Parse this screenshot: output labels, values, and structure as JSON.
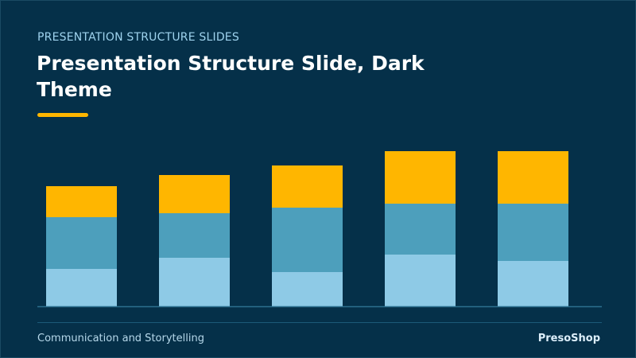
{
  "slide": {
    "kicker": "PRESENTATION STRUCTURE SLIDES",
    "title": "Presentation Structure Slide, Dark Theme",
    "footer_left": "Communication and Storytelling",
    "footer_right": "PresoShop"
  },
  "colors": {
    "background": "#053049",
    "accent": "#ffb600",
    "segment_bottom": "#8ecae6",
    "segment_middle": "#4d9fbc",
    "segment_top": "#ffb600",
    "baseline": "#2c6f8f"
  },
  "chart_data": {
    "type": "bar",
    "stacked": true,
    "categories": [
      "",
      "",
      "",
      "",
      ""
    ],
    "series": [
      {
        "values": [
          47,
          61,
          43,
          65,
          57
        ],
        "color": "#8ecae6"
      },
      {
        "values": [
          65,
          56,
          81,
          64,
          72
        ],
        "color": "#4d9fbc"
      },
      {
        "values": [
          39,
          48,
          53,
          66,
          66
        ],
        "color": "#ffb600"
      }
    ],
    "ylim": [
      0,
      200
    ],
    "grid": false,
    "legend": "none",
    "title": "",
    "xlabel": "",
    "ylabel": ""
  }
}
